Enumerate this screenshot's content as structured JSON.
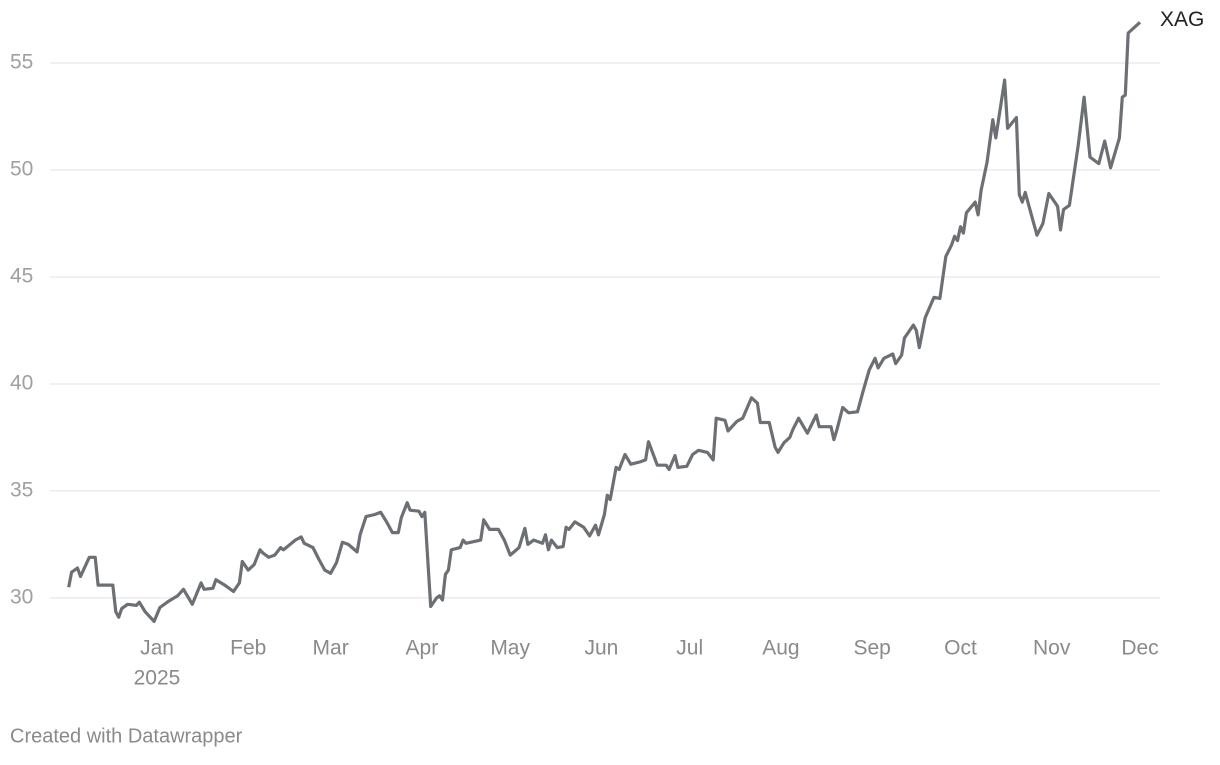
{
  "chart_data": {
    "type": "line",
    "x": [
      -30,
      -29,
      -27,
      -26,
      -23,
      -21,
      -20,
      -15,
      -14,
      -13,
      -12,
      -10,
      -7,
      -6,
      -4,
      -1,
      1,
      4,
      7,
      9,
      12,
      15,
      16,
      19,
      20,
      23,
      26,
      28,
      29,
      31,
      33,
      35,
      36,
      38,
      40,
      42,
      43,
      47,
      49,
      50,
      53,
      55,
      57,
      59,
      61,
      63,
      65,
      68,
      69,
      71,
      74,
      76,
      78,
      80,
      82,
      83,
      85,
      86,
      89,
      90,
      91,
      93,
      95,
      96,
      97,
      98,
      99,
      100,
      103,
      104,
      105,
      110,
      111,
      113,
      116,
      118,
      120,
      123,
      125,
      126,
      128,
      131,
      132,
      133,
      134,
      136,
      138,
      139,
      140,
      142,
      145,
      147,
      149,
      150,
      152,
      153,
      154,
      156,
      157,
      159,
      161,
      164,
      166,
      167,
      170,
      173,
      174,
      176,
      177,
      180,
      182,
      184,
      187,
      189,
      190,
      193,
      194,
      197,
      199,
      202,
      204,
      205,
      208,
      210,
      211,
      213,
      215,
      216,
      218,
      221,
      224,
      225,
      229,
      230,
      231,
      233,
      235,
      238,
      240,
      242,
      244,
      245,
      247,
      250,
      251,
      253,
      254,
      257,
      258,
      259,
      261,
      264,
      266,
      268,
      270,
      271,
      272,
      273,
      274,
      275,
      278,
      279,
      280,
      282,
      284,
      285,
      288,
      289,
      292,
      293,
      294,
      295,
      299,
      301,
      303,
      306,
      307,
      308,
      310,
      313,
      315,
      317,
      320,
      322,
      324,
      327,
      328,
      329,
      330,
      334
    ],
    "series": [
      {
        "name": "XAG",
        "color": "#6c6f73",
        "values": [
          30.5,
          31.2,
          31.4,
          31.0,
          31.9,
          31.9,
          30.6,
          30.6,
          29.35,
          29.1,
          29.5,
          29.7,
          29.65,
          29.8,
          29.35,
          28.9,
          29.55,
          29.85,
          30.1,
          30.4,
          29.7,
          30.7,
          30.4,
          30.45,
          30.85,
          30.6,
          30.3,
          30.7,
          31.7,
          31.3,
          31.55,
          32.25,
          32.1,
          31.9,
          32.0,
          32.35,
          32.25,
          32.7,
          32.85,
          32.55,
          32.35,
          31.8,
          31.3,
          31.15,
          31.65,
          32.6,
          32.5,
          32.15,
          32.95,
          33.8,
          33.9,
          34.0,
          33.55,
          33.05,
          33.05,
          33.75,
          34.45,
          34.1,
          34.05,
          33.8,
          34.0,
          29.6,
          30.0,
          30.1,
          29.9,
          31.1,
          31.3,
          32.25,
          32.35,
          32.7,
          32.55,
          32.7,
          33.65,
          33.2,
          33.2,
          32.7,
          32.0,
          32.35,
          33.25,
          32.5,
          32.7,
          32.55,
          32.95,
          32.25,
          32.7,
          32.35,
          32.4,
          33.3,
          33.2,
          33.55,
          33.3,
          32.9,
          33.4,
          32.95,
          33.9,
          34.8,
          34.6,
          36.1,
          36.0,
          36.7,
          36.25,
          36.35,
          36.45,
          37.3,
          36.2,
          36.2,
          36.0,
          36.65,
          36.1,
          36.15,
          36.7,
          36.9,
          36.8,
          36.45,
          38.4,
          38.3,
          37.8,
          38.25,
          38.4,
          39.35,
          39.1,
          38.2,
          38.2,
          37.05,
          36.8,
          37.25,
          37.5,
          37.85,
          38.4,
          37.7,
          38.55,
          38.0,
          38.0,
          37.4,
          37.85,
          38.9,
          38.65,
          38.7,
          39.7,
          40.65,
          41.2,
          40.75,
          41.2,
          41.4,
          40.95,
          41.35,
          42.15,
          42.75,
          42.5,
          41.7,
          43.1,
          44.05,
          44.0,
          45.95,
          46.5,
          46.9,
          46.7,
          47.35,
          47.05,
          48.0,
          48.5,
          47.9,
          49.05,
          50.35,
          52.35,
          51.5,
          54.2,
          51.95,
          52.45,
          48.85,
          48.5,
          48.95,
          46.95,
          47.5,
          48.9,
          48.3,
          47.2,
          48.15,
          48.35,
          51.15,
          53.4,
          50.6,
          50.3,
          51.35,
          50.1,
          51.5,
          53.4,
          53.5,
          56.4,
          56.9
        ]
      }
    ],
    "xlim": [
      -30,
      334
    ],
    "xticks": [
      {
        "value": 0,
        "label": "Jan"
      },
      {
        "value": 31,
        "label": "Feb"
      },
      {
        "value": 59,
        "label": "Mar"
      },
      {
        "value": 90,
        "label": "Apr"
      },
      {
        "value": 120,
        "label": "May"
      },
      {
        "value": 151,
        "label": "Jun"
      },
      {
        "value": 181,
        "label": "Jul"
      },
      {
        "value": 212,
        "label": "Aug"
      },
      {
        "value": 243,
        "label": "Sep"
      },
      {
        "value": 273,
        "label": "Oct"
      },
      {
        "value": 304,
        "label": "Nov"
      },
      {
        "value": 334,
        "label": "Dec"
      }
    ],
    "xtick_year": "2025",
    "ylim": [
      28.5,
      57.5
    ],
    "yticks": [
      30,
      35,
      40,
      45,
      50,
      55
    ],
    "grid": true,
    "source": "Created with Datawrapper"
  }
}
